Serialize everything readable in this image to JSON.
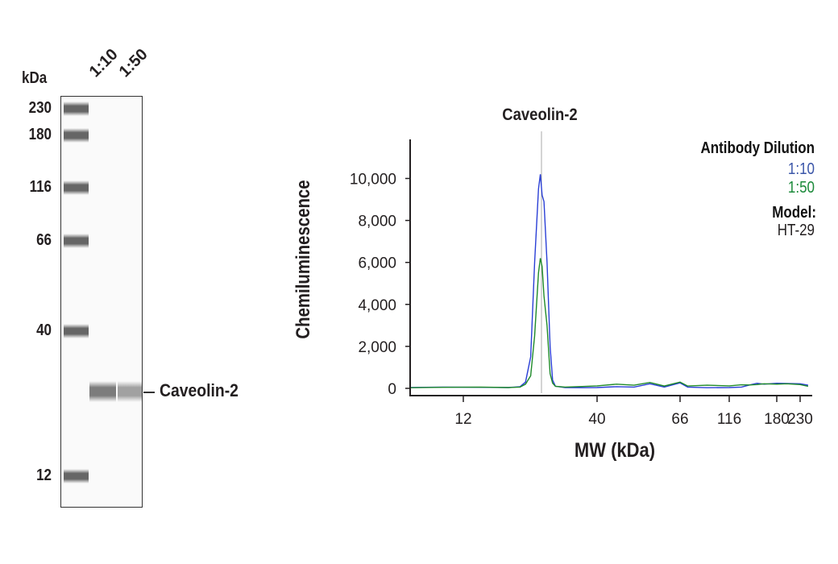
{
  "gel": {
    "unit_label": "kDa",
    "lane_labels": [
      "1:10",
      "1:50"
    ],
    "ladder": [
      {
        "label": "230",
        "mw": 230
      },
      {
        "label": "180",
        "mw": 180
      },
      {
        "label": "116",
        "mw": 116
      },
      {
        "label": "66",
        "mw": 66
      },
      {
        "label": "40",
        "mw": 40
      },
      {
        "label": "12",
        "mw": 12
      }
    ],
    "band_label": "Caveolin-2",
    "band_intensity": [
      0.85,
      0.6
    ]
  },
  "chart_data": {
    "type": "line",
    "title": "Caveolin-2",
    "xlabel": "MW (kDa)",
    "ylabel": "Chemiluminescence",
    "xscale": "log",
    "xticks": [
      12,
      40,
      66,
      116,
      180,
      230
    ],
    "xtick_labels": [
      "12",
      "40",
      "66",
      "116",
      "180",
      "230"
    ],
    "yticks": [
      0,
      2000,
      4000,
      6000,
      8000,
      10000
    ],
    "ytick_labels": [
      "0",
      "2,000",
      "4,000",
      "6,000",
      "8,000",
      "10,000"
    ],
    "ylim": [
      0,
      12000
    ],
    "xlim": [
      7.4,
      250
    ],
    "marker_mw": 24,
    "legend": {
      "title": "Antibody Dilution",
      "model_label": "Model:",
      "model_value": "HT-29",
      "placement": "top-right"
    },
    "series": [
      {
        "name": "1:10",
        "color": "#2a3fd6",
        "label_color": "#3a55a8",
        "points": [
          [
            7.4,
            40
          ],
          [
            10,
            60
          ],
          [
            14,
            50
          ],
          [
            18,
            40
          ],
          [
            20,
            80
          ],
          [
            21,
            300
          ],
          [
            22,
            1500
          ],
          [
            22.8,
            6000
          ],
          [
            23.6,
            9500
          ],
          [
            24,
            10200
          ],
          [
            24.4,
            9200
          ],
          [
            24.8,
            8900
          ],
          [
            25.5,
            6000
          ],
          [
            26.2,
            2000
          ],
          [
            26.8,
            400
          ],
          [
            27.5,
            100
          ],
          [
            30,
            40
          ],
          [
            35,
            30
          ],
          [
            40,
            40
          ],
          [
            45,
            80
          ],
          [
            50,
            60
          ],
          [
            55,
            220
          ],
          [
            60,
            60
          ],
          [
            66,
            260
          ],
          [
            72,
            60
          ],
          [
            90,
            30
          ],
          [
            116,
            40
          ],
          [
            130,
            60
          ],
          [
            140,
            160
          ],
          [
            150,
            240
          ],
          [
            160,
            200
          ],
          [
            180,
            240
          ],
          [
            200,
            230
          ],
          [
            230,
            220
          ],
          [
            250,
            150
          ]
        ]
      },
      {
        "name": "1:50",
        "color": "#1f8a2a",
        "label_color": "#1b8a3a",
        "points": [
          [
            7.4,
            30
          ],
          [
            10,
            50
          ],
          [
            14,
            60
          ],
          [
            18,
            40
          ],
          [
            20,
            60
          ],
          [
            21,
            200
          ],
          [
            22,
            600
          ],
          [
            22.8,
            2500
          ],
          [
            23.6,
            5500
          ],
          [
            24,
            6200
          ],
          [
            24.4,
            5800
          ],
          [
            24.8,
            4400
          ],
          [
            25.5,
            3000
          ],
          [
            26.2,
            700
          ],
          [
            26.8,
            250
          ],
          [
            27.5,
            100
          ],
          [
            30,
            60
          ],
          [
            35,
            90
          ],
          [
            40,
            120
          ],
          [
            45,
            200
          ],
          [
            50,
            150
          ],
          [
            55,
            280
          ],
          [
            60,
            110
          ],
          [
            66,
            300
          ],
          [
            72,
            110
          ],
          [
            90,
            150
          ],
          [
            116,
            120
          ],
          [
            130,
            170
          ],
          [
            140,
            160
          ],
          [
            150,
            180
          ],
          [
            160,
            220
          ],
          [
            180,
            200
          ],
          [
            200,
            220
          ],
          [
            230,
            180
          ],
          [
            250,
            100
          ]
        ]
      }
    ]
  }
}
